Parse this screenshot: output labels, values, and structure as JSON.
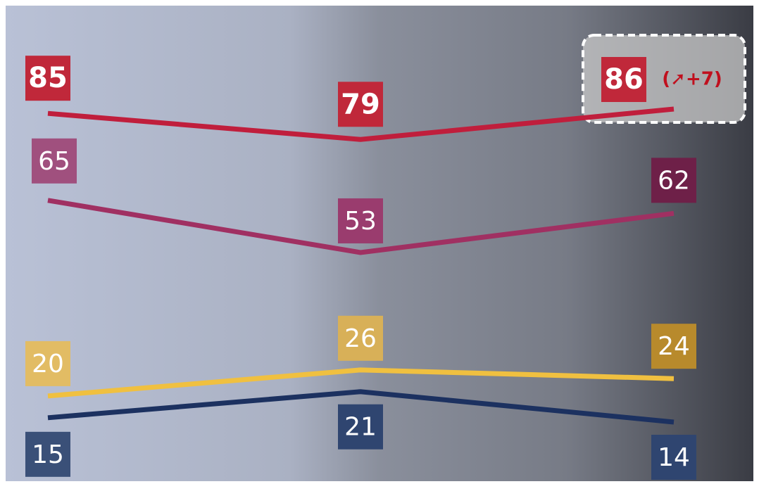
{
  "chart_data": {
    "type": "line",
    "categories": [
      null,
      null,
      null
    ],
    "series": [
      {
        "color": "#c01e3c",
        "values": [
          85,
          79,
          86
        ]
      },
      {
        "color": "#a03062",
        "values": [
          65,
          53,
          62
        ]
      },
      {
        "color": "#f0c040",
        "values": [
          20,
          26,
          24
        ]
      },
      {
        "color": "#1c3160",
        "values": [
          15,
          21,
          14
        ]
      }
    ],
    "annotation": "(➚+7)"
  }
}
